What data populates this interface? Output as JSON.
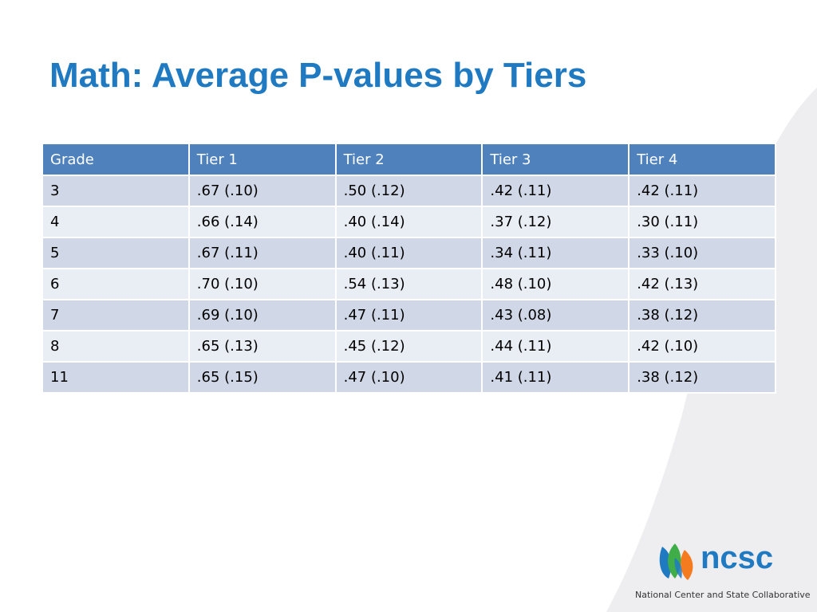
{
  "title": "Math: Average P-values by Tiers",
  "table": {
    "headers": [
      "Grade",
      "Tier 1",
      "Tier 2",
      "Tier 3",
      "Tier 4"
    ],
    "rows": [
      [
        "3",
        ".67 (.10)",
        ".50 (.12)",
        ".42 (.11)",
        ".42 (.11)"
      ],
      [
        "4",
        ".66 (.14)",
        ".40 (.14)",
        ".37 (.12)",
        ".30 (.11)"
      ],
      [
        "5",
        ".67 (.11)",
        ".40 (.11)",
        ".34 (.11)",
        ".33 (.10)"
      ],
      [
        "6",
        ".70 (.10)",
        ".54 (.13)",
        ".48 (.10)",
        ".42 (.13)"
      ],
      [
        "7",
        ".69 (.10)",
        ".47 (.11)",
        ".43 (.08)",
        ".38 (.12)"
      ],
      [
        "8",
        ".65 (.13)",
        ".45 (.12)",
        ".44 (.11)",
        ".42 (.10)"
      ],
      [
        "11",
        ".65 (.15)",
        ".47 (.10)",
        ".41 (.11)",
        ".38 (.12)"
      ]
    ]
  },
  "logo": {
    "wordmark": "ncsc",
    "tagline": "National Center and State Collaborative"
  },
  "colors": {
    "title": "#1F7AC2",
    "header_bg": "#4F81BD",
    "row_odd": "#D0D8E8",
    "row_even": "#E9EDF4"
  }
}
